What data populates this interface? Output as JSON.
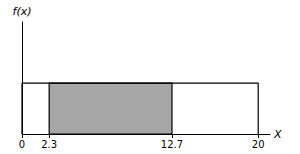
{
  "chart_data": {
    "type": "area",
    "x": [
      0,
      20
    ],
    "values": [
      0.05,
      0.05
    ],
    "color": "#000000",
    "shaded": {
      "x": [
        2.3,
        12.7
      ],
      "color": "#a6a6a6"
    },
    "x_label": "X",
    "y_label": "f(x)",
    "xlim": [
      0,
      21
    ],
    "xticks": [
      0,
      2.3,
      12.7,
      20
    ],
    "ylim": [
      0,
      0.11
    ],
    "tick_labels": "x",
    "grid": false
  }
}
